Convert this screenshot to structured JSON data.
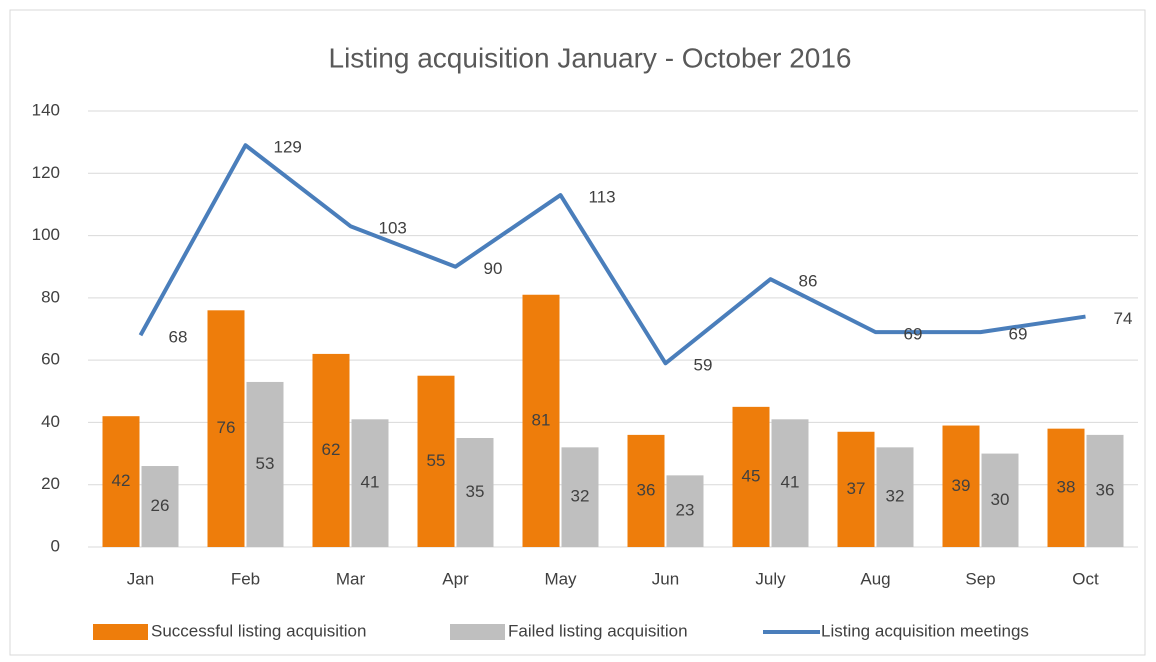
{
  "chart_data": {
    "type": "bar",
    "title": "Listing acquisition January - October 2016",
    "categories": [
      "Jan",
      "Feb",
      "Mar",
      "Apr",
      "May",
      "Jun",
      "July",
      "Aug",
      "Sep",
      "Oct"
    ],
    "series": [
      {
        "name": "Successful listing acquisition",
        "type": "bar",
        "color": "#ee7d0b",
        "values": [
          42,
          76,
          62,
          55,
          81,
          36,
          45,
          37,
          39,
          38
        ]
      },
      {
        "name": "Failed listing acquisition",
        "type": "bar",
        "color": "#bfbfbf",
        "values": [
          26,
          53,
          41,
          35,
          32,
          23,
          41,
          32,
          30,
          36
        ]
      },
      {
        "name": "Listing acquisition meetings",
        "type": "line",
        "color": "#4a7ebb",
        "values": [
          68,
          129,
          103,
          90,
          113,
          59,
          86,
          69,
          69,
          74
        ]
      }
    ],
    "ylim": [
      0,
      140
    ],
    "yticks": [
      0,
      20,
      40,
      60,
      80,
      100,
      120,
      140
    ],
    "grid": true,
    "legend": "bottom"
  }
}
